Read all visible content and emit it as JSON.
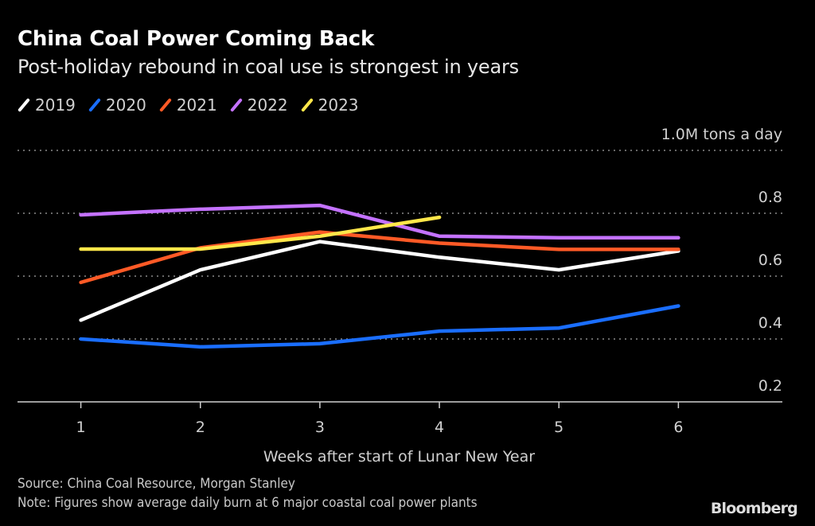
{
  "chart_data": {
    "type": "line",
    "title": "China Coal Power Coming Back",
    "subtitle": "Post-holiday rebound in coal use is strongest in years",
    "xlabel": "Weeks after start of Lunar New Year",
    "ylabel": "M tons a day",
    "x": [
      1,
      2,
      3,
      4,
      5,
      6
    ],
    "x_tick_labels": [
      "1",
      "2",
      "3",
      "4",
      "5",
      "6"
    ],
    "y_ticks": [
      0.2,
      0.4,
      0.6,
      0.8,
      1.0
    ],
    "y_tick_labels": [
      "0.2",
      "0.4",
      "0.6",
      "0.8",
      "1.0M tons a day"
    ],
    "ylim": [
      0.2,
      1.0
    ],
    "xlim": [
      0.47,
      6.87
    ],
    "grid": true,
    "legend_position": "top-left",
    "series": [
      {
        "name": "2019",
        "color": "#ffffff",
        "values": [
          0.46,
          0.62,
          0.71,
          0.66,
          0.62,
          0.68
        ]
      },
      {
        "name": "2020",
        "color": "#1a6eff",
        "values": [
          0.4,
          0.375,
          0.385,
          0.425,
          0.435,
          0.505
        ]
      },
      {
        "name": "2021",
        "color": "#ff5a26",
        "values": [
          0.58,
          0.69,
          0.74,
          0.705,
          0.685,
          0.685
        ]
      },
      {
        "name": "2022",
        "color": "#c472ff",
        "values": [
          0.795,
          0.813,
          0.825,
          0.727,
          0.722,
          0.722
        ]
      },
      {
        "name": "2023",
        "color": "#ffe74a",
        "values": [
          0.686,
          0.686,
          0.727,
          0.787
        ]
      }
    ]
  },
  "footer": {
    "source": "Source: China Coal Resource, Morgan Stanley",
    "note": "Note: Figures show average daily burn at 6 major coastal coal power plants",
    "brand": "Bloomberg"
  }
}
